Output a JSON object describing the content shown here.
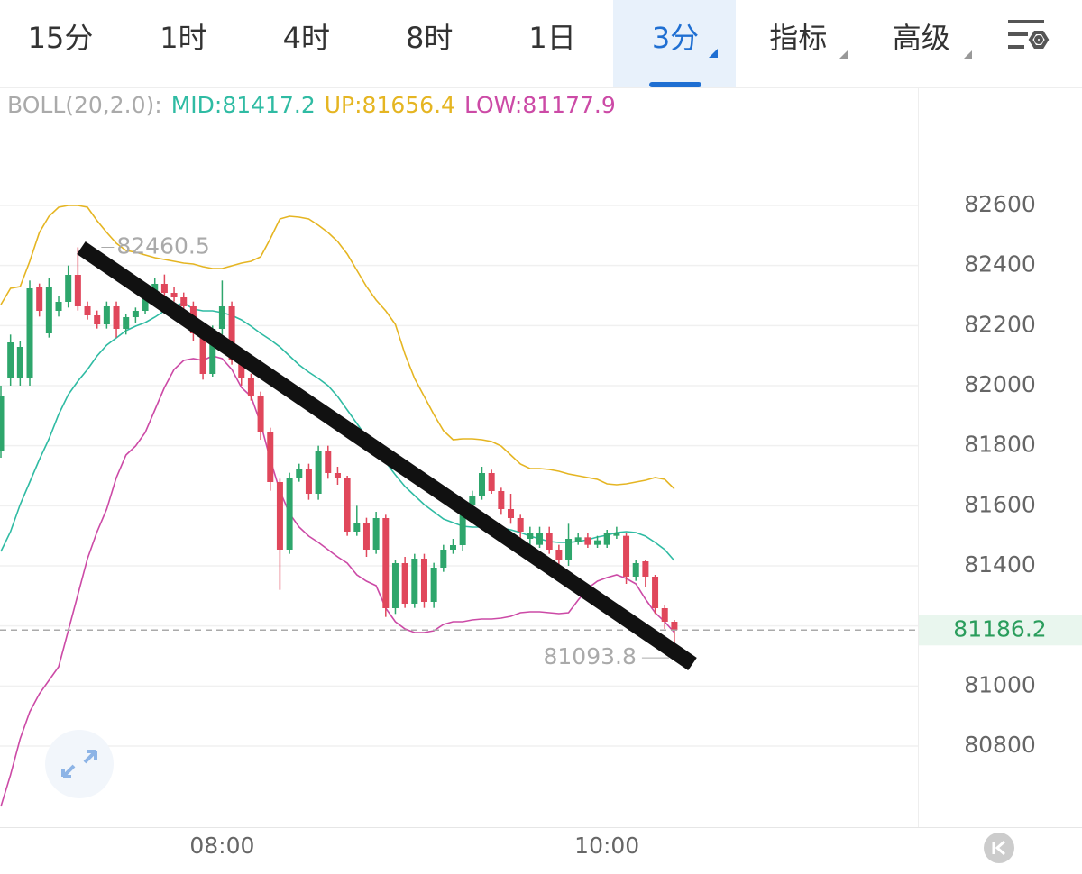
{
  "tabs": {
    "items": [
      "15分",
      "1时",
      "4时",
      "8时",
      "1日",
      "3分",
      "指标",
      "高级"
    ],
    "active": 5
  },
  "chart_data": {
    "type": "candlestick",
    "indicator": "BOLL(20,2.0):",
    "legend_separator": ":",
    "categories": [
      null,
      null,
      null,
      null,
      null,
      null,
      null,
      null,
      null,
      null,
      null,
      null,
      null,
      null,
      null,
      null,
      null,
      null,
      null,
      null,
      null,
      null,
      null,
      "08:00",
      null,
      null,
      null,
      null,
      null,
      null,
      null,
      null,
      null,
      null,
      null,
      null,
      null,
      null,
      null,
      null,
      null,
      null,
      null,
      null,
      null,
      null,
      null,
      null,
      null,
      null,
      null,
      null,
      null,
      null,
      null,
      null,
      null,
      null,
      null,
      null,
      null,
      null,
      null,
      "10:00",
      null,
      null,
      null,
      null,
      null,
      null,
      null
    ],
    "open": [
      81784,
      82024,
      82024,
      82024,
      82330,
      82174,
      82249,
      82279,
      82369,
      82264,
      82234,
      82204,
      82264,
      82189,
      82228,
      82249,
      82294,
      82339,
      82309,
      82294,
      82264,
      82174,
      82039,
      82189,
      82264,
      82084,
      82024,
      81964,
      81844,
      81679,
      81454,
      81694,
      81724,
      81640,
      81784,
      81709,
      81694,
      81514,
      81544,
      81454,
      81559,
      81259,
      81409,
      81274,
      81424,
      81280,
      81394,
      81454,
      81469,
      81604,
      81634,
      81709,
      81649,
      81589,
      81559,
      81490,
      81470,
      81510,
      81454,
      81418,
      81480,
      81495,
      81470,
      81470,
      81500,
      81500,
      81364,
      81415,
      81364,
      81259,
      81214
    ],
    "high": [
      82000,
      82170,
      82150,
      82350,
      82340,
      82360,
      82300,
      82400,
      82460.5,
      82280,
      82250,
      82280,
      82280,
      82240,
      82260,
      82310,
      82360,
      82370,
      82330,
      82310,
      82280,
      82190,
      82200,
      82350,
      82280,
      82100,
      82040,
      81980,
      81860,
      81690,
      81710,
      81740,
      81740,
      81800,
      81800,
      81730,
      81700,
      81600,
      81560,
      81580,
      81570,
      81420,
      81430,
      81440,
      81440,
      81410,
      81470,
      81490,
      81620,
      81650,
      81730,
      81720,
      81660,
      81640,
      81570,
      81530,
      81530,
      81530,
      81470,
      81540,
      81510,
      81510,
      81500,
      81520,
      81530,
      81510,
      81420,
      81420,
      81370,
      81270,
      81220
    ],
    "low": [
      81760,
      82000,
      82000,
      82000,
      82230,
      82160,
      82230,
      82260,
      82250,
      82220,
      82190,
      82190,
      82160,
      82170,
      82210,
      82240,
      82280,
      82300,
      82280,
      82250,
      82150,
      82020,
      82030,
      82170,
      82070,
      82000,
      81950,
      81820,
      81650,
      81320,
      81440,
      81680,
      81620,
      81620,
      81690,
      81670,
      81500,
      81500,
      81430,
      81440,
      81230,
      81240,
      81260,
      81260,
      81260,
      81260,
      81380,
      81440,
      81450,
      81590,
      81620,
      81640,
      81570,
      81540,
      81490,
      81470,
      81460,
      81440,
      81400,
      81400,
      81470,
      81460,
      81460,
      81460,
      81490,
      81340,
      81350,
      81330,
      81240,
      81190,
      81093.8
    ],
    "close": [
      81964,
      82144,
      82129,
      82324,
      82249,
      82330,
      82279,
      82369,
      82264,
      82234,
      82204,
      82264,
      82189,
      82228,
      82249,
      82294,
      82339,
      82309,
      82294,
      82264,
      82174,
      82039,
      82189,
      82264,
      82084,
      82024,
      81964,
      81844,
      81679,
      81454,
      81694,
      81724,
      81640,
      81784,
      81709,
      81694,
      81514,
      81544,
      81454,
      81559,
      81259,
      81409,
      81274,
      81424,
      81280,
      81394,
      81454,
      81469,
      81604,
      81634,
      81709,
      81649,
      81589,
      81559,
      81514,
      81510,
      81510,
      81454,
      81418,
      81490,
      81495,
      81470,
      81485,
      81510,
      81510,
      81364,
      81409,
      81364,
      81259,
      81214,
      81186.2
    ],
    "up_color": "#2ea66c",
    "down_color": "#e0475b",
    "series": [
      {
        "name": "MID",
        "color": "#2fbba3",
        "values": [
          81448,
          81514,
          81604,
          81679,
          81754,
          81823,
          81904,
          81970,
          82015,
          82054,
          82099,
          82135,
          82159,
          82183,
          82198,
          82210,
          82228,
          82249,
          82264,
          82276,
          82255,
          82249,
          82249,
          82243,
          82234,
          82219,
          82198,
          82174,
          82153,
          82129,
          82099,
          82069,
          82045,
          82024,
          82000,
          81964,
          81919,
          81874,
          81829,
          81784,
          81745,
          81703,
          81664,
          81634,
          81604,
          81580,
          81556,
          81544,
          81532,
          81529,
          81529,
          81529,
          81526,
          81520,
          81511,
          81499,
          81490,
          81481,
          81478,
          81478,
          81481,
          81487,
          81496,
          81502,
          81511,
          81514,
          81511,
          81499,
          81478,
          81454,
          81417.2
        ]
      },
      {
        "name": "UP",
        "color": "#e5b522",
        "values": [
          82270,
          82324,
          82330,
          82414,
          82510,
          82564,
          82594,
          82600,
          82600,
          82594,
          82549,
          82510,
          82474,
          82450,
          82444,
          82435,
          82426,
          82420,
          82414,
          82408,
          82405,
          82396,
          82390,
          82390,
          82399,
          82408,
          82414,
          82429,
          82489,
          82555,
          82564,
          82561,
          82555,
          82534,
          82510,
          82480,
          82438,
          82384,
          82330,
          82285,
          82249,
          82204,
          82105,
          82024,
          81964,
          81904,
          81850,
          81820,
          81823,
          81823,
          81820,
          81814,
          81799,
          81769,
          81739,
          81724,
          81724,
          81721,
          81715,
          81706,
          81700,
          81694,
          81688,
          81673,
          81670,
          81673,
          81679,
          81685,
          81694,
          81688,
          81656.4
        ]
      },
      {
        "name": "LOW",
        "color": "#cc4aa6",
        "values": [
          80599,
          80704,
          80824,
          80914,
          80974,
          81019,
          81064,
          81184,
          81304,
          81424,
          81514,
          81589,
          81694,
          81769,
          81799,
          81844,
          81919,
          81994,
          82054,
          82084,
          82090,
          82084,
          82099,
          82090,
          82054,
          81994,
          81964,
          81874,
          81754,
          81649,
          81574,
          81529,
          81499,
          81478,
          81454,
          81430,
          81409,
          81370,
          81349,
          81334,
          81259,
          81214,
          81190,
          81178,
          81178,
          81184,
          81205,
          81214,
          81214,
          81220,
          81223,
          81223,
          81226,
          81232,
          81244,
          81247,
          81247,
          81244,
          81241,
          81244,
          81286,
          81325,
          81349,
          81361,
          81370,
          81358,
          81340,
          81289,
          81244,
          81214,
          81177.9
        ]
      }
    ],
    "ylim": [
      80530,
      82990
    ],
    "yticks": [
      80800,
      81000,
      81200,
      81400,
      81600,
      81800,
      82000,
      82200,
      82400,
      82600
    ],
    "grid": true
  }
}
